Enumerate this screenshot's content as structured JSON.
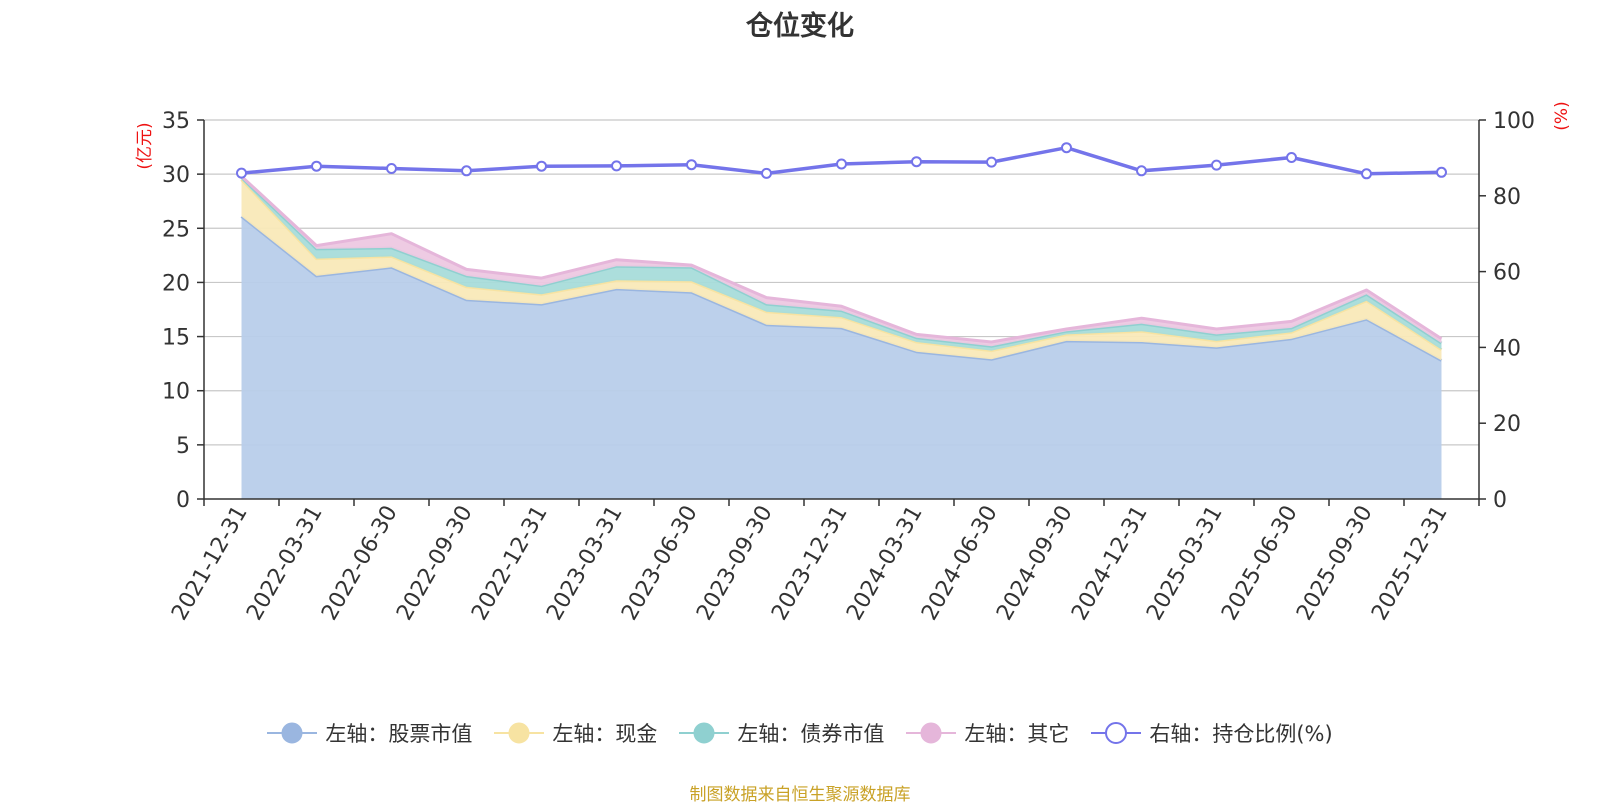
{
  "chart_data": {
    "type": "area",
    "title": "仓位变化",
    "left_axis": {
      "label": "(亿元)",
      "ylim": [
        0,
        35
      ],
      "ticks": [
        0,
        5,
        10,
        15,
        20,
        25,
        30,
        35
      ]
    },
    "right_axis": {
      "label": "(%)",
      "ylim": [
        0,
        100
      ],
      "ticks": [
        0,
        20,
        40,
        60,
        80,
        100
      ]
    },
    "categories": [
      "2021-12-31",
      "2022-03-31",
      "2022-06-30",
      "2022-09-30",
      "2022-12-31",
      "2023-03-31",
      "2023-06-30",
      "2023-09-30",
      "2023-12-31",
      "2024-03-31",
      "2024-06-30",
      "2024-09-30",
      "2024-12-31",
      "2025-03-31",
      "2025-06-30",
      "2025-09-30",
      "2025-12-31"
    ],
    "stacked_series": [
      {
        "name": "左轴：股票市值",
        "axis": "left",
        "color": "#9ab6e0",
        "fill": "#b8cdea",
        "values": [
          26.1,
          20.6,
          21.4,
          18.4,
          18.0,
          19.4,
          19.1,
          16.1,
          15.8,
          13.6,
          12.9,
          14.6,
          14.5,
          14.0,
          14.8,
          16.6,
          12.8
        ]
      },
      {
        "name": "左轴：现金",
        "axis": "left",
        "color": "#f7e3a2",
        "fill": "#f9e9b8",
        "values": [
          3.4,
          1.6,
          1.0,
          1.2,
          0.9,
          0.8,
          1.0,
          1.2,
          1.0,
          0.9,
          0.8,
          0.6,
          1.0,
          0.6,
          0.6,
          1.7,
          1.0
        ]
      },
      {
        "name": "左轴：债券市值",
        "axis": "left",
        "color": "#8fd0d0",
        "fill": "#a8dcda",
        "values": [
          0.2,
          0.9,
          0.8,
          1.0,
          0.8,
          1.3,
          1.3,
          0.7,
          0.6,
          0.4,
          0.4,
          0.3,
          0.7,
          0.6,
          0.4,
          0.6,
          0.6
        ]
      },
      {
        "name": "左轴：其它",
        "axis": "left",
        "color": "#e5b6da",
        "fill": "#edc8e2",
        "values": [
          0.1,
          0.3,
          1.3,
          0.6,
          0.7,
          0.6,
          0.2,
          0.6,
          0.4,
          0.3,
          0.4,
          0.2,
          0.5,
          0.5,
          0.6,
          0.4,
          0.4
        ]
      }
    ],
    "line_series": {
      "name": "右轴：持仓比例(%)",
      "axis": "right",
      "color": "#7474ea",
      "values": [
        86.0,
        87.8,
        87.2,
        86.6,
        87.8,
        87.9,
        88.2,
        85.9,
        88.4,
        89.0,
        88.9,
        92.7,
        86.6,
        88.1,
        90.1,
        85.8,
        86.2
      ]
    },
    "legend_position": "bottom-center"
  },
  "legend": {
    "items": [
      {
        "label": "左轴：股票市值",
        "color": "#9ab6e0",
        "hollow": false
      },
      {
        "label": "左轴：现金",
        "color": "#f7e3a2",
        "hollow": false
      },
      {
        "label": "左轴：债券市值",
        "color": "#8fd0d0",
        "hollow": false
      },
      {
        "label": "左轴：其它",
        "color": "#e5b6da",
        "hollow": false
      },
      {
        "label": "右轴：持仓比例(%)",
        "color": "#7474ea",
        "hollow": true
      }
    ]
  },
  "source_note": "制图数据来自恒生聚源数据库"
}
